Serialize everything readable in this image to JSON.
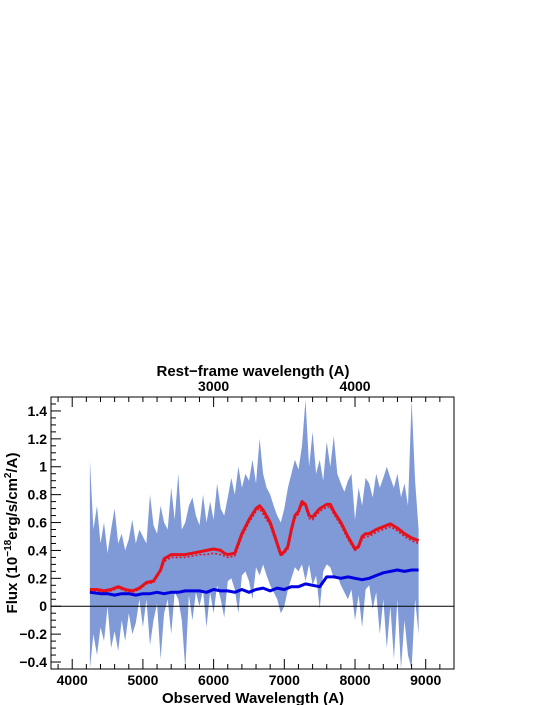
{
  "chart_data": {
    "type": "line",
    "x_axis": {
      "label": "Observed Wavelength (A)",
      "range": [
        3700,
        9400
      ],
      "ticks": [
        4000,
        5000,
        6000,
        7000,
        8000,
        9000
      ],
      "tick_labels": [
        "4000",
        "5000",
        "6000",
        "7000",
        "8000",
        "9000"
      ]
    },
    "top_axis": {
      "label": "Rest−frame wavelength (A)",
      "ticks": [
        3000,
        4000
      ],
      "tick_labels": [
        "3000",
        "4000"
      ],
      "redshift": 1.0
    },
    "y_axis": {
      "label_prefix": "Flux (10",
      "label_exp1": "−18",
      "label_mid": "erg/s/cm",
      "label_exp2": "2",
      "label_suffix": "/A)",
      "range": [
        -0.45,
        1.5
      ],
      "ticks": [
        -0.4,
        -0.2,
        0,
        0.2,
        0.4,
        0.6,
        0.8,
        1,
        1.2,
        1.4
      ],
      "tick_labels": [
        "−0.4",
        "−0.2",
        "0",
        "0.2",
        "0.4",
        "0.6",
        "0.8",
        "1",
        "1.2",
        "1.4"
      ]
    },
    "zero_line": 0,
    "band": {
      "color": "#7f9ad6",
      "x": [
        4250,
        4300,
        4350,
        4400,
        4450,
        4500,
        4550,
        4600,
        4650,
        4700,
        4750,
        4800,
        4850,
        4900,
        4950,
        5000,
        5050,
        5100,
        5150,
        5200,
        5250,
        5300,
        5350,
        5400,
        5450,
        5500,
        5550,
        5600,
        5650,
        5700,
        5750,
        5800,
        5850,
        5900,
        5950,
        6000,
        6050,
        6100,
        6150,
        6200,
        6250,
        6300,
        6350,
        6400,
        6450,
        6500,
        6550,
        6600,
        6650,
        6700,
        6750,
        6800,
        6850,
        6900,
        6950,
        7000,
        7050,
        7100,
        7150,
        7200,
        7250,
        7300,
        7350,
        7400,
        7450,
        7500,
        7550,
        7600,
        7650,
        7700,
        7750,
        7800,
        7850,
        7900,
        7950,
        8000,
        8050,
        8100,
        8150,
        8200,
        8250,
        8300,
        8350,
        8400,
        8450,
        8500,
        8550,
        8600,
        8650,
        8700,
        8750,
        8800,
        8850,
        8900
      ],
      "upper": [
        1.05,
        0.55,
        0.72,
        0.45,
        0.6,
        0.38,
        0.55,
        0.7,
        0.45,
        0.52,
        0.4,
        0.48,
        0.62,
        0.45,
        0.55,
        0.5,
        0.45,
        0.8,
        0.58,
        0.52,
        0.72,
        0.6,
        0.55,
        0.85,
        0.62,
        0.95,
        0.55,
        0.6,
        0.72,
        0.78,
        0.65,
        0.58,
        0.8,
        0.6,
        0.75,
        0.62,
        0.88,
        0.7,
        0.65,
        0.78,
        0.92,
        0.8,
        1.0,
        0.85,
        0.95,
        0.9,
        1.05,
        0.88,
        1.2,
        0.95,
        0.85,
        0.8,
        0.72,
        0.65,
        0.6,
        0.7,
        0.85,
        0.95,
        1.05,
        0.98,
        1.15,
        1.48,
        1.0,
        1.25,
        0.95,
        1.05,
        0.9,
        1.18,
        1.0,
        1.22,
        0.95,
        0.88,
        0.82,
        0.9,
        0.95,
        0.62,
        0.85,
        0.72,
        0.92,
        0.88,
        0.78,
        0.95,
        0.85,
        0.92,
        1.0,
        0.92,
        0.85,
        0.95,
        0.78,
        0.88,
        0.72,
        1.48,
        0.9,
        0.55
      ],
      "lower": [
        -0.45,
        -0.2,
        -0.35,
        -0.15,
        -0.25,
        0.0,
        -0.3,
        -0.18,
        -0.32,
        -0.1,
        -0.25,
        -0.05,
        -0.2,
        -0.12,
        0.05,
        -0.15,
        0.05,
        -0.28,
        -0.1,
        0.02,
        -0.38,
        -0.05,
        0.05,
        -0.2,
        0.1,
        0.05,
        -0.1,
        -0.45,
        0.08,
        -0.1,
        0.1,
        0.0,
        0.12,
        -0.15,
        0.1,
        -0.05,
        0.15,
        0.05,
        -0.08,
        0.18,
        0.2,
        0.12,
        -0.05,
        0.22,
        0.25,
        0.18,
        0.05,
        0.28,
        0.22,
        0.3,
        0.22,
        0.15,
        0.1,
        0.05,
        -0.05,
        0.0,
        0.12,
        0.2,
        0.28,
        0.25,
        0.3,
        0.18,
        0.3,
        0.15,
        0.22,
        -0.02,
        0.25,
        0.3,
        0.28,
        0.2,
        0.22,
        0.15,
        0.1,
        0.05,
        0.12,
        -0.1,
        0.08,
        -0.15,
        0.12,
        0.15,
        -0.02,
        0.1,
        -0.2,
        0.05,
        -0.3,
        0.0,
        -0.38,
        0.05,
        -0.45,
        -0.1,
        -0.35,
        -0.45,
        0.05,
        -0.2
      ]
    },
    "series": [
      {
        "color": "#e8101a",
        "dash": "solid",
        "x": [
          4250,
          4350,
          4450,
          4550,
          4650,
          4750,
          4850,
          4950,
          5050,
          5150,
          5250,
          5300,
          5400,
          5500,
          5600,
          5700,
          5800,
          5900,
          6000,
          6100,
          6150,
          6200,
          6300,
          6400,
          6500,
          6600,
          6650,
          6700,
          6800,
          6900,
          6950,
          7000,
          7050,
          7100,
          7150,
          7200,
          7250,
          7300,
          7350,
          7400,
          7450,
          7500,
          7600,
          7650,
          7700,
          7800,
          7900,
          8000,
          8050,
          8100,
          8150,
          8200,
          8300,
          8400,
          8500,
          8600,
          8700,
          8800,
          8900
        ],
        "y": [
          0.12,
          0.12,
          0.11,
          0.12,
          0.14,
          0.12,
          0.11,
          0.13,
          0.17,
          0.18,
          0.26,
          0.34,
          0.37,
          0.37,
          0.37,
          0.38,
          0.39,
          0.4,
          0.41,
          0.4,
          0.38,
          0.37,
          0.38,
          0.52,
          0.62,
          0.7,
          0.72,
          0.69,
          0.6,
          0.45,
          0.37,
          0.39,
          0.43,
          0.55,
          0.65,
          0.68,
          0.75,
          0.73,
          0.65,
          0.64,
          0.67,
          0.7,
          0.73,
          0.73,
          0.68,
          0.6,
          0.5,
          0.41,
          0.43,
          0.5,
          0.52,
          0.52,
          0.55,
          0.57,
          0.59,
          0.56,
          0.52,
          0.49,
          0.47
        ]
      },
      {
        "color": "#e8101a",
        "dash": "dotted",
        "x": [
          4250,
          4350,
          4450,
          4550,
          4650,
          4750,
          4850,
          4950,
          5050,
          5150,
          5250,
          5300,
          5400,
          5500,
          5600,
          5700,
          5800,
          5900,
          6000,
          6100,
          6150,
          6200,
          6300,
          6400,
          6500,
          6600,
          6650,
          6700,
          6800,
          6900,
          6950,
          7000,
          7050,
          7100,
          7150,
          7200,
          7250,
          7300,
          7350,
          7400,
          7450,
          7500,
          7600,
          7650,
          7700,
          7800,
          7900,
          8000,
          8050,
          8100,
          8150,
          8200,
          8300,
          8400,
          8500,
          8600,
          8700,
          8800,
          8900
        ],
        "y": [
          0.11,
          0.11,
          0.1,
          0.11,
          0.13,
          0.11,
          0.1,
          0.12,
          0.16,
          0.17,
          0.25,
          0.32,
          0.35,
          0.35,
          0.35,
          0.36,
          0.37,
          0.37,
          0.38,
          0.37,
          0.36,
          0.35,
          0.36,
          0.5,
          0.6,
          0.68,
          0.7,
          0.66,
          0.58,
          0.43,
          0.36,
          0.38,
          0.41,
          0.53,
          0.63,
          0.66,
          0.73,
          0.71,
          0.63,
          0.62,
          0.65,
          0.68,
          0.71,
          0.71,
          0.66,
          0.58,
          0.48,
          0.4,
          0.42,
          0.48,
          0.5,
          0.5,
          0.53,
          0.55,
          0.57,
          0.54,
          0.5,
          0.47,
          0.45
        ]
      },
      {
        "color": "#0000e0",
        "dash": "solid",
        "x": [
          4250,
          4400,
          4500,
          4600,
          4700,
          4800,
          4900,
          5000,
          5100,
          5200,
          5300,
          5400,
          5500,
          5600,
          5700,
          5800,
          5900,
          6000,
          6100,
          6200,
          6300,
          6400,
          6500,
          6600,
          6700,
          6800,
          6900,
          7000,
          7100,
          7200,
          7300,
          7400,
          7500,
          7600,
          7700,
          7800,
          7900,
          8000,
          8100,
          8200,
          8300,
          8400,
          8500,
          8600,
          8700,
          8800,
          8900
        ],
        "y": [
          0.1,
          0.09,
          0.09,
          0.08,
          0.09,
          0.09,
          0.08,
          0.09,
          0.09,
          0.1,
          0.09,
          0.1,
          0.1,
          0.11,
          0.11,
          0.11,
          0.1,
          0.12,
          0.11,
          0.11,
          0.1,
          0.12,
          0.1,
          0.12,
          0.13,
          0.11,
          0.13,
          0.12,
          0.14,
          0.14,
          0.16,
          0.15,
          0.14,
          0.21,
          0.21,
          0.2,
          0.21,
          0.2,
          0.19,
          0.2,
          0.22,
          0.24,
          0.25,
          0.26,
          0.25,
          0.26,
          0.26
        ]
      }
    ]
  }
}
